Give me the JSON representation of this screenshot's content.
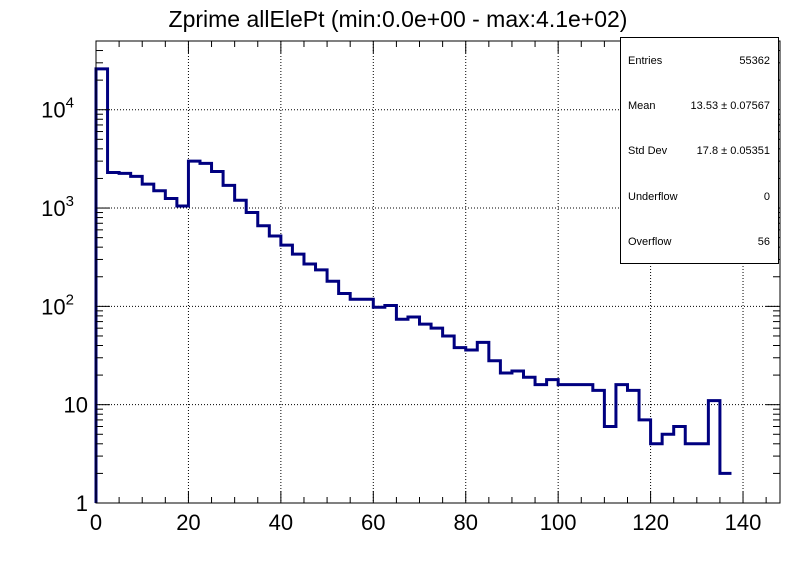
{
  "chart_data": {
    "type": "histogram",
    "title": "Zprime allElePt (min:0.0e+00 - max:4.1e+02)",
    "xlabel": "",
    "ylabel": "",
    "xlim": [
      0,
      148
    ],
    "ylim": [
      1,
      50000
    ],
    "y_scale": "log",
    "grid": true,
    "bin_width": 2.5,
    "bin_edges_start": 0,
    "values": [
      26000,
      2300,
      2250,
      2100,
      1750,
      1500,
      1250,
      1050,
      3000,
      2850,
      2350,
      1700,
      1200,
      900,
      660,
      520,
      420,
      340,
      270,
      235,
      180,
      135,
      118,
      118,
      98,
      102,
      74,
      78,
      66,
      60,
      50,
      38,
      36,
      43,
      28,
      21,
      22,
      19,
      16,
      18,
      16,
      16,
      16,
      14,
      6,
      16,
      14,
      7,
      4,
      5,
      6,
      4,
      4,
      11,
      2
    ],
    "line_color": "#000080",
    "x_ticks": [
      "0",
      "20",
      "40",
      "60",
      "80",
      "100",
      "120",
      "140"
    ],
    "x_tick_values": [
      0,
      20,
      40,
      60,
      80,
      100,
      120,
      140
    ],
    "y_ticks": [
      {
        "value": 1,
        "base": "1",
        "exp": ""
      },
      {
        "value": 10,
        "base": "10",
        "exp": ""
      },
      {
        "value": 100,
        "base": "10",
        "exp": "2"
      },
      {
        "value": 1000,
        "base": "10",
        "exp": "3"
      },
      {
        "value": 10000,
        "base": "10",
        "exp": "4"
      }
    ],
    "stats": [
      {
        "label": "Entries",
        "value": "55362"
      },
      {
        "label": "Mean",
        "value": "13.53 ± 0.07567"
      },
      {
        "label": "Std Dev",
        "value": "17.8 ± 0.05351"
      },
      {
        "label": "Underflow",
        "value": "0"
      },
      {
        "label": "Overflow",
        "value": "56"
      }
    ]
  }
}
